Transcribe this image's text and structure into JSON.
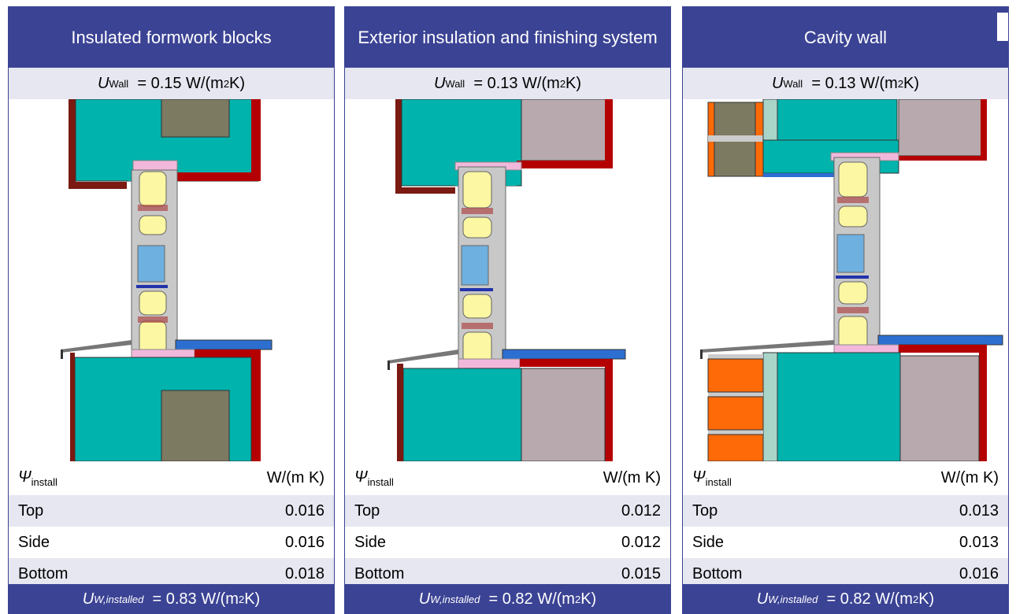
{
  "panels": [
    {
      "title": "Insulated formwork blocks",
      "u_wall": {
        "symbol": "U",
        "sub": "Wall",
        "value": "= 0.15 W/(m",
        "sup": "2",
        "tail": " K)"
      },
      "psi_label": {
        "symbol": "Ψ",
        "sub": "install"
      },
      "psi_unit": "W/(m K)",
      "rows": [
        {
          "label": "Top",
          "value": "0.016"
        },
        {
          "label": "Side",
          "value": "0.016"
        },
        {
          "label": "Bottom",
          "value": "0.018"
        }
      ],
      "u_installed": {
        "symbol": "U",
        "sub": "W,installed",
        "value": "= 0.83 W/(m",
        "sup": "2",
        "tail": " K)"
      }
    },
    {
      "title": "Exterior insulation and finishing system",
      "u_wall": {
        "symbol": "U",
        "sub": "Wall",
        "value": "= 0.13 W/(m",
        "sup": "2",
        "tail": " K)"
      },
      "psi_label": {
        "symbol": "Ψ",
        "sub": "install"
      },
      "psi_unit": "W/(m K)",
      "rows": [
        {
          "label": "Top",
          "value": "0.012"
        },
        {
          "label": "Side",
          "value": "0.012"
        },
        {
          "label": "Bottom",
          "value": "0.015"
        }
      ],
      "u_installed": {
        "symbol": "U",
        "sub": "W,installed",
        "value": "= 0.82 W/(m",
        "sup": "2",
        "tail": " K)"
      }
    },
    {
      "title": "Cavity wall",
      "u_wall": {
        "symbol": "U",
        "sub": "Wall",
        "value": "= 0.13 W/(m",
        "sup": "2",
        "tail": " K)"
      },
      "psi_label": {
        "symbol": "Ψ",
        "sub": "install"
      },
      "psi_unit": "W/(m K)",
      "rows": [
        {
          "label": "Top",
          "value": "0.013"
        },
        {
          "label": "Side",
          "value": "0.013"
        },
        {
          "label": "Bottom",
          "value": "0.016"
        }
      ],
      "u_installed": {
        "symbol": "U",
        "sub": "W,installed",
        "value": "= 0.82 W/(m",
        "sup": "2",
        "tail": " K)"
      }
    }
  ],
  "colors": {
    "header": "#3b4394",
    "band": "#e6e7f1",
    "insulation_teal": "#00b3ad",
    "core_olive": "#7d7a62",
    "render_red": "#b40000",
    "concrete_mauve": "#b7a9ad",
    "sill_blue": "#2d6fd1",
    "glazing_blue": "#6eb0e0",
    "frame_yellow": "#fcf7a2",
    "frame_grey": "#c8c8c8",
    "brick_orange": "#ff6a08",
    "airgap_mint": "#a9d5c9",
    "seal_pink": "#f2b8dc"
  }
}
